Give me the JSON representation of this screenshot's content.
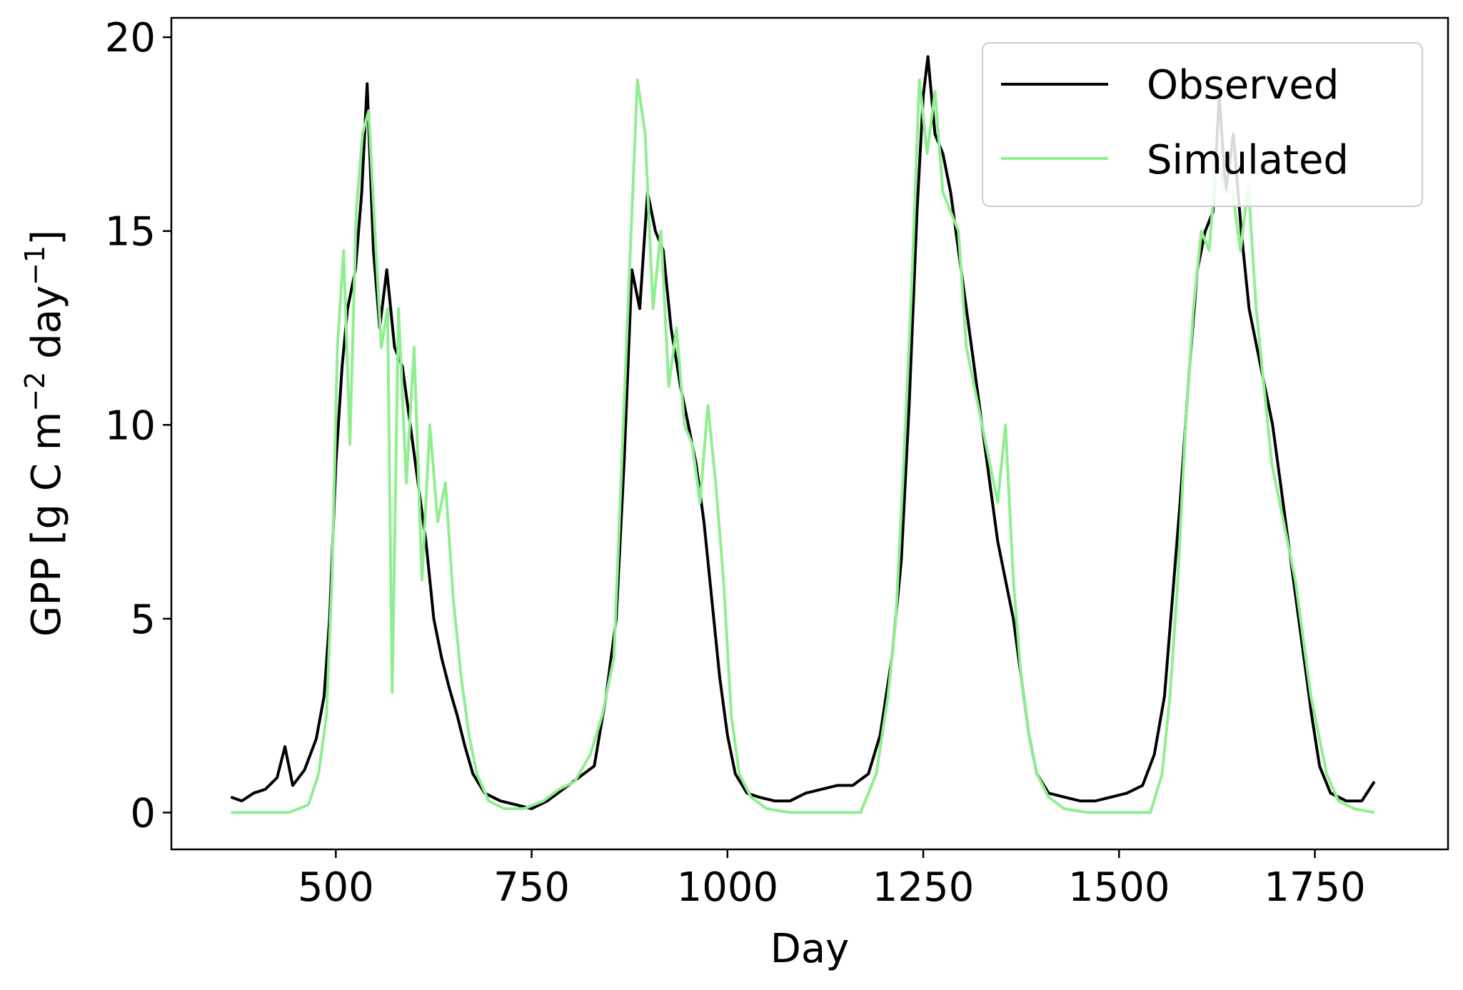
{
  "chart_data": {
    "type": "line",
    "title": "",
    "xlabel": "Day",
    "ylabel": "GPP [g C m",
    "ylabel_sup1": "−2",
    "ylabel_mid": " day",
    "ylabel_sup2": "−1",
    "ylabel_end": "]",
    "xlim": [
      290,
      1920
    ],
    "ylim": [
      -0.95,
      20.5
    ],
    "xticks": [
      500,
      750,
      1000,
      1250,
      1500,
      1750
    ],
    "yticks": [
      0,
      5,
      10,
      15,
      20
    ],
    "grid": false,
    "legend_position": "top-right",
    "series": [
      {
        "name": "Observed",
        "color": "#000000",
        "points": [
          [
            366,
            0.4
          ],
          [
            380,
            0.3
          ],
          [
            395,
            0.5
          ],
          [
            410,
            0.6
          ],
          [
            425,
            0.9
          ],
          [
            435,
            1.7
          ],
          [
            445,
            0.7
          ],
          [
            460,
            1.1
          ],
          [
            475,
            1.9
          ],
          [
            485,
            3.0
          ],
          [
            492,
            5.0
          ],
          [
            500,
            9.0
          ],
          [
            508,
            11.5
          ],
          [
            515,
            13.0
          ],
          [
            525,
            14.0
          ],
          [
            533,
            16.0
          ],
          [
            540,
            18.8
          ],
          [
            548,
            14.5
          ],
          [
            556,
            12.5
          ],
          [
            565,
            14.0
          ],
          [
            575,
            12.0
          ],
          [
            585,
            11.5
          ],
          [
            595,
            10.0
          ],
          [
            605,
            8.5
          ],
          [
            615,
            7.0
          ],
          [
            625,
            5.0
          ],
          [
            635,
            4.0
          ],
          [
            645,
            3.2
          ],
          [
            655,
            2.5
          ],
          [
            665,
            1.7
          ],
          [
            675,
            1.0
          ],
          [
            690,
            0.5
          ],
          [
            710,
            0.3
          ],
          [
            730,
            0.2
          ],
          [
            750,
            0.1
          ],
          [
            770,
            0.3
          ],
          [
            790,
            0.6
          ],
          [
            810,
            0.9
          ],
          [
            830,
            1.2
          ],
          [
            845,
            3.0
          ],
          [
            858,
            5.0
          ],
          [
            868,
            9.0
          ],
          [
            878,
            14.0
          ],
          [
            888,
            13.0
          ],
          [
            898,
            16.0
          ],
          [
            908,
            15.0
          ],
          [
            918,
            14.5
          ],
          [
            928,
            12.5
          ],
          [
            940,
            11.0
          ],
          [
            950,
            10.0
          ],
          [
            960,
            9.0
          ],
          [
            970,
            7.5
          ],
          [
            980,
            5.5
          ],
          [
            990,
            3.5
          ],
          [
            1000,
            2.0
          ],
          [
            1010,
            1.0
          ],
          [
            1025,
            0.5
          ],
          [
            1040,
            0.4
          ],
          [
            1060,
            0.3
          ],
          [
            1080,
            0.3
          ],
          [
            1100,
            0.5
          ],
          [
            1120,
            0.6
          ],
          [
            1140,
            0.7
          ],
          [
            1160,
            0.7
          ],
          [
            1180,
            1.0
          ],
          [
            1195,
            2.0
          ],
          [
            1210,
            4.0
          ],
          [
            1222,
            6.5
          ],
          [
            1232,
            10.5
          ],
          [
            1242,
            15.5
          ],
          [
            1250,
            18.5
          ],
          [
            1256,
            19.5
          ],
          [
            1265,
            17.5
          ],
          [
            1275,
            17.0
          ],
          [
            1285,
            16.0
          ],
          [
            1295,
            14.5
          ],
          [
            1305,
            13.0
          ],
          [
            1315,
            11.5
          ],
          [
            1325,
            10.0
          ],
          [
            1335,
            8.5
          ],
          [
            1345,
            7.0
          ],
          [
            1355,
            6.0
          ],
          [
            1365,
            5.0
          ],
          [
            1375,
            3.5
          ],
          [
            1385,
            2.0
          ],
          [
            1395,
            1.0
          ],
          [
            1410,
            0.5
          ],
          [
            1430,
            0.4
          ],
          [
            1450,
            0.3
          ],
          [
            1470,
            0.3
          ],
          [
            1490,
            0.4
          ],
          [
            1510,
            0.5
          ],
          [
            1530,
            0.7
          ],
          [
            1545,
            1.5
          ],
          [
            1558,
            3.0
          ],
          [
            1568,
            5.5
          ],
          [
            1578,
            8.0
          ],
          [
            1590,
            11.5
          ],
          [
            1600,
            14.0
          ],
          [
            1610,
            15.0
          ],
          [
            1620,
            15.5
          ],
          [
            1628,
            18.5
          ],
          [
            1636,
            16.0
          ],
          [
            1646,
            17.5
          ],
          [
            1656,
            15.0
          ],
          [
            1666,
            13.0
          ],
          [
            1676,
            12.0
          ],
          [
            1686,
            11.0
          ],
          [
            1696,
            10.0
          ],
          [
            1706,
            8.5
          ],
          [
            1716,
            7.0
          ],
          [
            1726,
            5.5
          ],
          [
            1736,
            4.0
          ],
          [
            1746,
            2.5
          ],
          [
            1756,
            1.2
          ],
          [
            1770,
            0.5
          ],
          [
            1790,
            0.3
          ],
          [
            1810,
            0.3
          ],
          [
            1826,
            0.8
          ]
        ]
      },
      {
        "name": "Simulated",
        "color": "#90ee90",
        "points": [
          [
            366,
            0.0
          ],
          [
            400,
            0.0
          ],
          [
            440,
            0.0
          ],
          [
            465,
            0.2
          ],
          [
            478,
            1.0
          ],
          [
            488,
            2.5
          ],
          [
            495,
            6.0
          ],
          [
            502,
            12.0
          ],
          [
            510,
            14.5
          ],
          [
            518,
            9.5
          ],
          [
            526,
            15.5
          ],
          [
            534,
            17.5
          ],
          [
            542,
            18.1
          ],
          [
            550,
            15.0
          ],
          [
            558,
            12.0
          ],
          [
            566,
            13.0
          ],
          [
            572,
            3.1
          ],
          [
            580,
            13.0
          ],
          [
            590,
            8.5
          ],
          [
            600,
            12.0
          ],
          [
            610,
            6.0
          ],
          [
            620,
            10.0
          ],
          [
            630,
            7.5
          ],
          [
            640,
            8.5
          ],
          [
            650,
            5.5
          ],
          [
            660,
            3.5
          ],
          [
            670,
            2.0
          ],
          [
            680,
            1.0
          ],
          [
            695,
            0.3
          ],
          [
            715,
            0.1
          ],
          [
            740,
            0.1
          ],
          [
            765,
            0.3
          ],
          [
            785,
            0.6
          ],
          [
            805,
            0.8
          ],
          [
            825,
            1.5
          ],
          [
            840,
            2.5
          ],
          [
            855,
            4.0
          ],
          [
            865,
            9.0
          ],
          [
            875,
            14.0
          ],
          [
            885,
            18.9
          ],
          [
            895,
            17.5
          ],
          [
            905,
            13.0
          ],
          [
            915,
            15.0
          ],
          [
            925,
            11.0
          ],
          [
            935,
            12.5
          ],
          [
            945,
            10.0
          ],
          [
            955,
            9.5
          ],
          [
            965,
            8.0
          ],
          [
            975,
            10.5
          ],
          [
            985,
            8.5
          ],
          [
            995,
            6.0
          ],
          [
            1005,
            2.5
          ],
          [
            1015,
            1.0
          ],
          [
            1030,
            0.4
          ],
          [
            1050,
            0.1
          ],
          [
            1080,
            0.0
          ],
          [
            1110,
            0.0
          ],
          [
            1140,
            0.0
          ],
          [
            1170,
            0.0
          ],
          [
            1190,
            1.0
          ],
          [
            1205,
            3.0
          ],
          [
            1215,
            5.0
          ],
          [
            1225,
            9.0
          ],
          [
            1235,
            13.5
          ],
          [
            1245,
            18.9
          ],
          [
            1255,
            17.0
          ],
          [
            1265,
            18.6
          ],
          [
            1275,
            16.0
          ],
          [
            1285,
            15.5
          ],
          [
            1295,
            15.0
          ],
          [
            1305,
            12.0
          ],
          [
            1315,
            11.0
          ],
          [
            1325,
            10.0
          ],
          [
            1335,
            9.0
          ],
          [
            1345,
            8.0
          ],
          [
            1355,
            10.0
          ],
          [
            1365,
            6.0
          ],
          [
            1375,
            3.5
          ],
          [
            1385,
            2.0
          ],
          [
            1395,
            1.0
          ],
          [
            1410,
            0.4
          ],
          [
            1430,
            0.1
          ],
          [
            1460,
            0.0
          ],
          [
            1500,
            0.0
          ],
          [
            1540,
            0.0
          ],
          [
            1555,
            1.0
          ],
          [
            1565,
            3.0
          ],
          [
            1575,
            6.0
          ],
          [
            1585,
            10.0
          ],
          [
            1595,
            13.0
          ],
          [
            1605,
            15.0
          ],
          [
            1615,
            14.5
          ],
          [
            1625,
            17.0
          ],
          [
            1635,
            16.0
          ],
          [
            1645,
            16.0
          ],
          [
            1655,
            14.5
          ],
          [
            1665,
            16.2
          ],
          [
            1675,
            13.0
          ],
          [
            1685,
            11.0
          ],
          [
            1695,
            9.0
          ],
          [
            1705,
            8.0
          ],
          [
            1715,
            7.0
          ],
          [
            1725,
            6.0
          ],
          [
            1735,
            4.5
          ],
          [
            1745,
            3.0
          ],
          [
            1755,
            2.0
          ],
          [
            1765,
            1.0
          ],
          [
            1780,
            0.3
          ],
          [
            1800,
            0.1
          ],
          [
            1826,
            0.0
          ]
        ]
      }
    ]
  }
}
